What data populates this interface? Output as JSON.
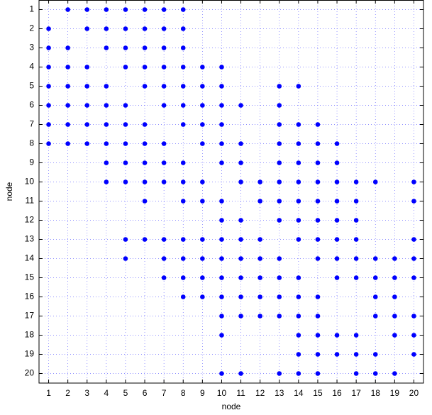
{
  "chart_data": {
    "type": "scatter",
    "xlabel": "node",
    "ylabel": "node",
    "xlim": [
      0.5,
      20.5
    ],
    "ylim": [
      20.5,
      0.5
    ],
    "xticks": [
      1,
      2,
      3,
      4,
      5,
      6,
      7,
      8,
      9,
      10,
      11,
      12,
      13,
      14,
      15,
      16,
      17,
      18,
      19,
      20
    ],
    "yticks": [
      1,
      2,
      3,
      4,
      5,
      6,
      7,
      8,
      9,
      10,
      11,
      12,
      13,
      14,
      15,
      16,
      17,
      18,
      19,
      20
    ],
    "grid": true,
    "series": [
      {
        "color": "#0000ff",
        "x": [
          2,
          3,
          4,
          5,
          6,
          7,
          8,
          1,
          3,
          4,
          5,
          6,
          7,
          8,
          1,
          2,
          4,
          5,
          6,
          7,
          8,
          1,
          2,
          3,
          5,
          6,
          7,
          8,
          9,
          10,
          1,
          2,
          3,
          4,
          6,
          7,
          8,
          9,
          10,
          13,
          14,
          1,
          2,
          3,
          4,
          5,
          7,
          8,
          9,
          10,
          11,
          13,
          1,
          2,
          3,
          4,
          5,
          6,
          8,
          9,
          10,
          13,
          14,
          15,
          1,
          2,
          3,
          4,
          5,
          6,
          7,
          9,
          10,
          11,
          13,
          14,
          15,
          16,
          4,
          5,
          6,
          7,
          8,
          10,
          11,
          13,
          14,
          15,
          16,
          4,
          5,
          6,
          7,
          8,
          9,
          11,
          12,
          13,
          14,
          15,
          16,
          17,
          18,
          20,
          6,
          8,
          9,
          10,
          12,
          13,
          14,
          15,
          16,
          17,
          20,
          10,
          11,
          13,
          14,
          15,
          16,
          17,
          5,
          6,
          7,
          8,
          9,
          10,
          11,
          12,
          14,
          15,
          16,
          17,
          20,
          5,
          7,
          8,
          9,
          10,
          11,
          12,
          13,
          15,
          16,
          17,
          18,
          19,
          20,
          7,
          8,
          9,
          10,
          11,
          12,
          13,
          14,
          16,
          17,
          18,
          19,
          20,
          8,
          9,
          10,
          11,
          12,
          13,
          14,
          15,
          18,
          19,
          10,
          11,
          12,
          13,
          14,
          15,
          18,
          19,
          20,
          10,
          14,
          15,
          16,
          17,
          19,
          20,
          14,
          15,
          16,
          17,
          18,
          20,
          10,
          11,
          13,
          14,
          15,
          17,
          18,
          19
        ],
        "y": [
          1,
          1,
          1,
          1,
          1,
          1,
          1,
          2,
          2,
          2,
          2,
          2,
          2,
          2,
          3,
          3,
          3,
          3,
          3,
          3,
          3,
          4,
          4,
          4,
          4,
          4,
          4,
          4,
          4,
          4,
          5,
          5,
          5,
          5,
          5,
          5,
          5,
          5,
          5,
          5,
          5,
          6,
          6,
          6,
          6,
          6,
          6,
          6,
          6,
          6,
          6,
          6,
          7,
          7,
          7,
          7,
          7,
          7,
          7,
          7,
          7,
          7,
          7,
          7,
          8,
          8,
          8,
          8,
          8,
          8,
          8,
          8,
          8,
          8,
          8,
          8,
          8,
          8,
          9,
          9,
          9,
          9,
          9,
          9,
          9,
          9,
          9,
          9,
          9,
          10,
          10,
          10,
          10,
          10,
          10,
          10,
          10,
          10,
          10,
          10,
          10,
          10,
          10,
          10,
          11,
          11,
          11,
          11,
          11,
          11,
          11,
          11,
          11,
          11,
          11,
          12,
          12,
          12,
          12,
          12,
          12,
          12,
          13,
          13,
          13,
          13,
          13,
          13,
          13,
          13,
          13,
          13,
          13,
          13,
          13,
          14,
          14,
          14,
          14,
          14,
          14,
          14,
          14,
          14,
          14,
          14,
          14,
          14,
          14,
          15,
          15,
          15,
          15,
          15,
          15,
          15,
          15,
          15,
          15,
          15,
          15,
          15,
          16,
          16,
          16,
          16,
          16,
          16,
          16,
          16,
          16,
          16,
          17,
          17,
          17,
          17,
          17,
          17,
          17,
          17,
          17,
          18,
          18,
          18,
          18,
          18,
          18,
          18,
          19,
          19,
          19,
          19,
          19,
          19,
          20,
          20,
          20,
          20,
          20,
          20,
          20,
          20
        ]
      }
    ]
  }
}
